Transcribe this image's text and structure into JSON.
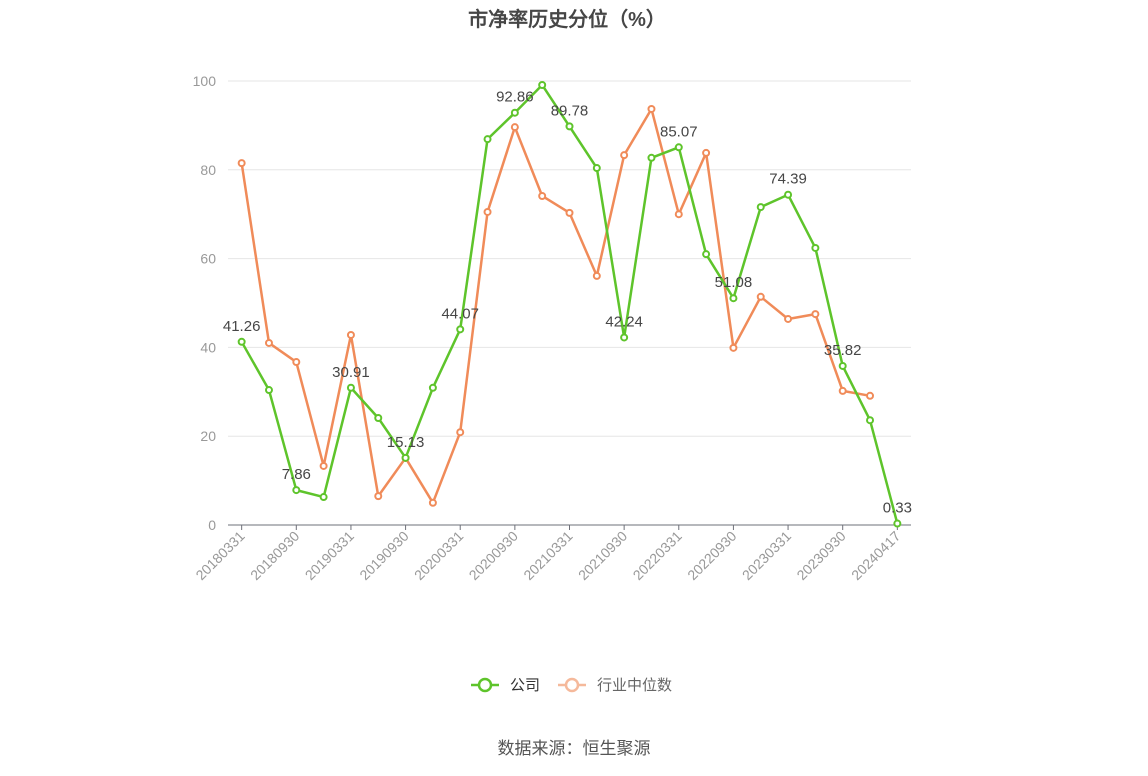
{
  "source": "数据来源：恒生聚源",
  "chart_data": {
    "type": "line",
    "title": "市净率历史分位（%）",
    "xlabel": "",
    "ylabel": "",
    "categories": [
      "20180331",
      "",
      "20180930",
      "",
      "20190331",
      "",
      "20190930",
      "",
      "20200331",
      "",
      "20200930",
      "",
      "20210331",
      "",
      "20210930",
      "",
      "20220331",
      "",
      "20220930",
      "",
      "20230331",
      "",
      "20230930",
      "",
      "20240417"
    ],
    "ylim": [
      0,
      100
    ],
    "yticks": [
      0,
      20,
      40,
      60,
      80,
      100
    ],
    "grid": true,
    "legend_position": "bottom",
    "series": [
      {
        "name": "公司",
        "color": "#5ec42b",
        "values": [
          41.26,
          30.4,
          7.86,
          6.3,
          30.91,
          24.1,
          15.13,
          30.9,
          44.07,
          86.9,
          92.86,
          99.1,
          89.78,
          80.4,
          42.24,
          82.7,
          85.07,
          61.0,
          51.08,
          71.6,
          74.39,
          62.4,
          35.82,
          23.6,
          0.33
        ],
        "labels": [
          "41.26",
          null,
          "7.86",
          null,
          "30.91",
          null,
          "15.13",
          null,
          "44.07",
          null,
          "92.86",
          null,
          "89.78",
          null,
          "42.24",
          null,
          "85.07",
          null,
          "51.08",
          null,
          "74.39",
          null,
          "35.82",
          null,
          "0.33"
        ]
      },
      {
        "name": "行业中位数",
        "color": "#f08b59",
        "values": [
          81.5,
          41.0,
          36.7,
          13.3,
          42.8,
          6.5,
          15.1,
          5.0,
          20.9,
          70.5,
          89.6,
          74.1,
          70.3,
          56.1,
          83.3,
          93.7,
          70.0,
          83.8,
          39.9,
          51.4,
          46.4,
          47.5,
          30.2,
          29.1,
          null
        ]
      }
    ]
  }
}
